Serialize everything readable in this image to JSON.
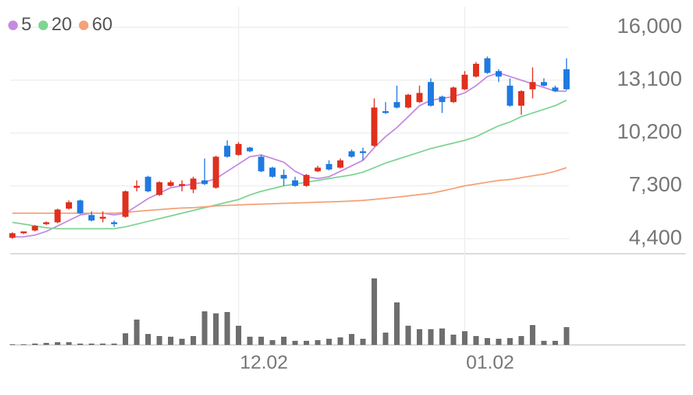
{
  "chart_data": {
    "type": "candlestick",
    "categories": [
      null,
      null,
      null,
      null,
      null,
      null,
      null,
      null,
      null,
      null,
      null,
      null,
      null,
      null,
      null,
      null,
      null,
      null,
      null,
      null,
      "12.02",
      null,
      null,
      null,
      null,
      null,
      null,
      null,
      null,
      null,
      null,
      null,
      null,
      null,
      null,
      null,
      null,
      null,
      null,
      null,
      "01.02",
      null,
      null,
      null,
      null,
      null,
      null,
      null,
      null,
      null
    ],
    "open": [
      4450,
      4700,
      4850,
      5200,
      5300,
      6050,
      6500,
      5700,
      5500,
      5300,
      5600,
      7200,
      7800,
      6800,
      7300,
      7300,
      7100,
      7600,
      7200,
      9500,
      9000,
      9400,
      8900,
      8300,
      7900,
      7600,
      7300,
      8100,
      8500,
      8300,
      9200,
      9200,
      9500,
      11400,
      11900,
      11600,
      11900,
      13000,
      12200,
      11900,
      12600,
      13300,
      14300,
      13600,
      12800,
      11700,
      12600,
      13000,
      12700,
      13700
    ],
    "close": [
      4700,
      4800,
      5100,
      5300,
      6000,
      6400,
      5800,
      5400,
      5600,
      5200,
      7000,
      7300,
      7000,
      7500,
      7500,
      7400,
      7700,
      7400,
      8900,
      8900,
      9600,
      9200,
      8100,
      7800,
      7700,
      7300,
      7900,
      8300,
      8200,
      8700,
      8900,
      9100,
      11600,
      11300,
      11600,
      12300,
      12400,
      11700,
      11900,
      12700,
      13400,
      14000,
      13500,
      13300,
      11700,
      12500,
      13000,
      12800,
      12500,
      12600
    ],
    "high": [
      4750,
      4800,
      5150,
      5350,
      6050,
      6500,
      6550,
      5900,
      5900,
      5400,
      7050,
      7600,
      7850,
      7550,
      7600,
      7600,
      7800,
      8800,
      8950,
      9800,
      9700,
      9450,
      9000,
      8350,
      8200,
      7800,
      7950,
      8400,
      8700,
      8800,
      9300,
      9400,
      12100,
      11900,
      12800,
      12350,
      12800,
      13200,
      12250,
      12750,
      13600,
      14100,
      14400,
      13700,
      13200,
      12550,
      13800,
      13200,
      12800,
      14300
    ],
    "low": [
      4400,
      4650,
      4800,
      5150,
      5250,
      6000,
      5750,
      5350,
      5300,
      5050,
      5550,
      7000,
      6950,
      6750,
      7250,
      7000,
      6900,
      7350,
      7150,
      8850,
      8950,
      9150,
      8050,
      7750,
      7300,
      7250,
      7250,
      8050,
      8150,
      8250,
      8850,
      8700,
      9450,
      11250,
      11550,
      11550,
      11850,
      11650,
      11300,
      11850,
      12550,
      13250,
      13450,
      13000,
      11650,
      11200,
      12100,
      12750,
      12450,
      12550
    ],
    "up_color": "#e0301e",
    "down_color": "#1f7ae0",
    "ylim": [
      3575,
      17125
    ],
    "yticks": [
      {
        "value": 16000,
        "label": "16,000"
      },
      {
        "value": 13100,
        "label": "13,100"
      },
      {
        "value": 10200,
        "label": "10,200"
      },
      {
        "value": 7300,
        "label": "7,300"
      },
      {
        "value": 4400,
        "label": "4,400"
      }
    ],
    "grid": true,
    "series": [
      {
        "name": "5",
        "color": "#c58be0",
        "values": [
          4500,
          4500,
          4600,
          4800,
          5100,
          5400,
          5700,
          5800,
          5800,
          5700,
          5800,
          6200,
          6600,
          6900,
          7200,
          7300,
          7400,
          7500,
          7700,
          8100,
          8500,
          8900,
          9000,
          8800,
          8600,
          8100,
          7800,
          7700,
          7800,
          8100,
          8400,
          8700,
          9400,
          10000,
          10500,
          11100,
          11700,
          12000,
          12100,
          12200,
          12400,
          12800,
          13300,
          13500,
          13300,
          13100,
          12900,
          12700,
          12500,
          12500
        ]
      },
      {
        "name": "20",
        "color": "#7fd494",
        "values": [
          5300,
          5200,
          5100,
          5000,
          4950,
          4950,
          4950,
          4950,
          4950,
          4950,
          5050,
          5200,
          5350,
          5500,
          5650,
          5800,
          5950,
          6100,
          6250,
          6400,
          6550,
          6800,
          7000,
          7150,
          7300,
          7400,
          7500,
          7600,
          7700,
          7800,
          7900,
          8050,
          8300,
          8550,
          8750,
          8950,
          9150,
          9350,
          9500,
          9650,
          9800,
          10000,
          10300,
          10600,
          10800,
          11100,
          11300,
          11500,
          11700,
          12000
        ]
      },
      {
        "name": "60",
        "color": "#f5a27a",
        "values": [
          5800,
          5800,
          5800,
          5800,
          5800,
          5800,
          5800,
          5800,
          5800,
          5800,
          5850,
          5900,
          5950,
          6000,
          6050,
          6080,
          6100,
          6150,
          6200,
          6230,
          6250,
          6280,
          6300,
          6320,
          6340,
          6360,
          6380,
          6400,
          6420,
          6440,
          6470,
          6500,
          6560,
          6620,
          6680,
          6750,
          6820,
          6890,
          7020,
          7160,
          7300,
          7400,
          7500,
          7600,
          7650,
          7750,
          7850,
          7950,
          8100,
          8300
        ]
      }
    ],
    "volume": {
      "color": "#6e6e6e",
      "ylim": [
        0,
        100
      ],
      "values": [
        1,
        1,
        2,
        3,
        4,
        4,
        2,
        2,
        2,
        2,
        17,
        37,
        16,
        13,
        12,
        9,
        13,
        49,
        46,
        48,
        28,
        12,
        12,
        7,
        12,
        6,
        6,
        7,
        9,
        11,
        16,
        9,
        97,
        18,
        62,
        28,
        23,
        23,
        24,
        15,
        20,
        13,
        10,
        9,
        10,
        13,
        29,
        6,
        6,
        26
      ]
    }
  }
}
